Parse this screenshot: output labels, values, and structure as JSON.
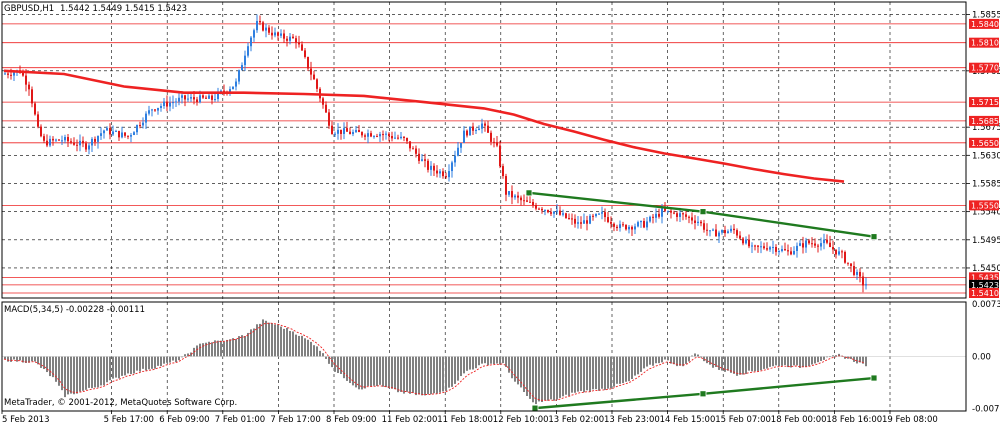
{
  "header": {
    "symbol": "GBPUSD,H1",
    "ohlc": "1.5442 1.5449 1.5415 1.5423"
  },
  "macd_header": "MACD(5,34,5) -0.00228 -0.00111",
  "copyright": "MetaTrader, © 2001-2012, MetaQuotes Software Corp.",
  "colors": {
    "bull": "#2f7fe0",
    "bear": "#e01818",
    "ma": "#ee2222",
    "trend": "#1f7a1f",
    "hline": "#ee2222",
    "grid": "#000000",
    "hist": "#808080",
    "signal": "#ee2222"
  },
  "chart_data": [
    {
      "type": "candlestick",
      "title": "GBPUSD,H1",
      "ylim": [
        1.5402,
        1.5875
      ],
      "price_ticks": [
        "1.5855",
        "1.5765",
        "1.5675",
        "1.5630",
        "1.5585",
        "1.5540",
        "1.5495",
        "1.5450"
      ],
      "horizontal_levels": [
        "1.5840",
        "1.5810",
        "1.5770",
        "1.5715",
        "1.5685",
        "1.5650",
        "1.5550",
        "1.5435",
        "1.5423",
        "1.5410"
      ],
      "current_price": "1.5423",
      "x_labels": [
        "5 Feb 2013",
        "5 Feb 17:00",
        "6 Feb 09:00",
        "7 Feb 01:00",
        "7 Feb 17:00",
        "8 Feb 09:00",
        "11 Feb 02:00",
        "11 Feb 18:00",
        "12 Feb 10:00",
        "13 Feb 02:00",
        "13 Feb 23:00",
        "14 Feb 15:00",
        "15 Feb 07:00",
        "18 Feb 00:00",
        "18 Feb 16:00",
        "19 Feb 08:00"
      ],
      "anchors": [
        [
          0,
          1.576
        ],
        [
          6,
          1.5765
        ],
        [
          9,
          1.574
        ],
        [
          12,
          1.567
        ],
        [
          14,
          1.565
        ],
        [
          20,
          1.5655
        ],
        [
          28,
          1.5645
        ],
        [
          34,
          1.567
        ],
        [
          42,
          1.566
        ],
        [
          50,
          1.5705
        ],
        [
          60,
          1.572
        ],
        [
          70,
          1.572
        ],
        [
          78,
          1.5745
        ],
        [
          82,
          1.581
        ],
        [
          85,
          1.584
        ],
        [
          92,
          1.582
        ],
        [
          98,
          1.5815
        ],
        [
          104,
          1.575
        ],
        [
          110,
          1.567
        ],
        [
          118,
          1.5665
        ],
        [
          126,
          1.5665
        ],
        [
          134,
          1.5655
        ],
        [
          142,
          1.561
        ],
        [
          148,
          1.56
        ],
        [
          154,
          1.5665
        ],
        [
          160,
          1.568
        ],
        [
          165,
          1.564
        ],
        [
          168,
          1.557
        ],
        [
          174,
          1.5555
        ],
        [
          184,
          1.554
        ],
        [
          192,
          1.552
        ],
        [
          200,
          1.5535
        ],
        [
          206,
          1.5515
        ],
        [
          214,
          1.552
        ],
        [
          220,
          1.554
        ],
        [
          226,
          1.5535
        ],
        [
          232,
          1.5525
        ],
        [
          236,
          1.5505
        ],
        [
          244,
          1.551
        ],
        [
          250,
          1.548
        ],
        [
          256,
          1.5485
        ],
        [
          262,
          1.5475
        ],
        [
          268,
          1.549
        ],
        [
          274,
          1.549
        ],
        [
          280,
          1.547
        ],
        [
          287,
          1.5425
        ]
      ],
      "moving_average": [
        [
          0,
          1.5765
        ],
        [
          20,
          1.576
        ],
        [
          40,
          1.574
        ],
        [
          60,
          1.573
        ],
        [
          80,
          1.573
        ],
        [
          100,
          1.5728
        ],
        [
          120,
          1.5725
        ],
        [
          140,
          1.5715
        ],
        [
          160,
          1.5705
        ],
        [
          170,
          1.5695
        ],
        [
          180,
          1.568
        ],
        [
          190,
          1.5668
        ],
        [
          200,
          1.5655
        ],
        [
          210,
          1.5643
        ],
        [
          220,
          1.5633
        ],
        [
          230,
          1.5625
        ],
        [
          240,
          1.5617
        ],
        [
          250,
          1.5608
        ],
        [
          260,
          1.56
        ],
        [
          270,
          1.5593
        ],
        [
          280,
          1.5588
        ]
      ],
      "trendline": [
        [
          175,
          1.557
        ],
        [
          233,
          1.554
        ],
        [
          290,
          1.55
        ]
      ],
      "n_bars": 288
    },
    {
      "type": "bar",
      "title": "MACD(5,34,5)",
      "ylim": [
        -0.0076,
        0.0076
      ],
      "y_ticks": [
        "0.00731",
        "0.00",
        "-0.00727"
      ],
      "hist_anchors": [
        [
          0,
          -0.0005
        ],
        [
          10,
          -0.0008
        ],
        [
          16,
          -0.003
        ],
        [
          20,
          -0.0055
        ],
        [
          26,
          -0.0048
        ],
        [
          32,
          -0.004
        ],
        [
          40,
          -0.0025
        ],
        [
          50,
          -0.0015
        ],
        [
          58,
          -0.0005
        ],
        [
          66,
          0.002
        ],
        [
          74,
          0.0022
        ],
        [
          80,
          0.003
        ],
        [
          86,
          0.005
        ],
        [
          90,
          0.0045
        ],
        [
          96,
          0.0035
        ],
        [
          104,
          0.0015
        ],
        [
          110,
          -0.002
        ],
        [
          118,
          -0.0045
        ],
        [
          124,
          -0.004
        ],
        [
          132,
          -0.005
        ],
        [
          140,
          -0.0055
        ],
        [
          148,
          -0.0045
        ],
        [
          154,
          -0.002
        ],
        [
          160,
          -0.001
        ],
        [
          166,
          -0.001
        ],
        [
          170,
          -0.0035
        ],
        [
          176,
          -0.0065
        ],
        [
          184,
          -0.006
        ],
        [
          190,
          -0.005
        ],
        [
          200,
          -0.0045
        ],
        [
          208,
          -0.0035
        ],
        [
          214,
          -0.0015
        ],
        [
          220,
          -0.0005
        ],
        [
          226,
          -0.0015
        ],
        [
          230,
          0.0005
        ],
        [
          236,
          -0.0015
        ],
        [
          244,
          -0.0025
        ],
        [
          250,
          -0.002
        ],
        [
          258,
          -0.0012
        ],
        [
          266,
          -0.0015
        ],
        [
          272,
          -0.0005
        ],
        [
          278,
          0.0002
        ],
        [
          284,
          -0.0008
        ],
        [
          287,
          -0.0012
        ]
      ],
      "trendline": [
        [
          177,
          -0.0072
        ],
        [
          233,
          -0.0052
        ],
        [
          290,
          -0.003
        ]
      ]
    }
  ]
}
